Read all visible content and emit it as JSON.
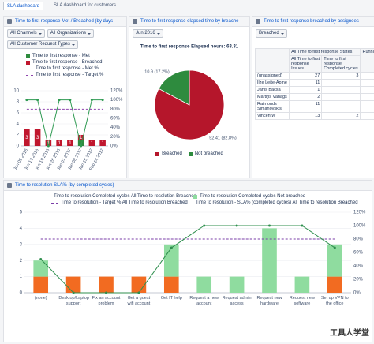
{
  "tabs": [
    "SLA dashboard",
    "SLA dashboard for customers"
  ],
  "panels": [
    {
      "title": "Time to first response Met / Breached (by days",
      "filters": [
        "All Channels",
        "All Organizations",
        "All Customer Request Types"
      ],
      "chart_data": {
        "type": "bar",
        "categories": [
          "Jun 05 2016",
          "Jun 12 2016",
          "Jun 19 2016",
          "Jun 26 2016",
          "Jan 01 2017",
          "Jan 08 2017",
          "Jan 15 2017",
          "Feb 14 2017"
        ],
        "series": [
          {
            "name": "Time to first response - Met",
            "type": "bar",
            "color": "#2e8b3e",
            "values": [
              0,
              0,
              0,
              0,
              0,
              1,
              0,
              0
            ]
          },
          {
            "name": "Time to first response - Breached",
            "type": "bar",
            "color": "#c0172e",
            "labels": true,
            "values": [
              3,
              3,
              1,
              1,
              1,
              1,
              1,
              1
            ]
          },
          {
            "name": "Time to first response - Met %",
            "type": "line",
            "axis": "y2",
            "color": "#2f9a52",
            "markers": true,
            "values": [
              100,
              100,
              0,
              100,
              100,
              0,
              100,
              100
            ]
          },
          {
            "name": "Time to first response - Target %",
            "type": "line",
            "axis": "y2",
            "color": "#8e44ad",
            "dashed": true,
            "values": [
              80,
              80,
              80,
              80,
              80,
              80,
              80,
              80
            ]
          }
        ],
        "ylim": [
          0,
          10
        ],
        "yticks": [
          0,
          2,
          4,
          6,
          8,
          10
        ],
        "y2lim": [
          0,
          120
        ],
        "y2ticks": [
          {
            "value": 0,
            "label": "0%"
          },
          {
            "value": 20,
            "label": "20%"
          },
          {
            "value": 40,
            "label": "40%"
          },
          {
            "value": 60,
            "label": "60%"
          },
          {
            "value": 80,
            "label": "80%"
          },
          {
            "value": 100,
            "label": "100%"
          },
          {
            "value": 120,
            "label": "120%"
          }
        ],
        "grid": true
      }
    },
    {
      "title": "Time to first response elapsed time by breache",
      "filters": [
        "Jun 2016"
      ],
      "chart_data": {
        "type": "pie",
        "title": "Time to first response Elapsed hours: 63.31",
        "categories": [
          "Breached",
          "Not breached"
        ],
        "values": [
          52.41,
          10.9
        ],
        "value_labels": [
          "52.41 (82.8%)",
          "10.9 (17.2%)"
        ],
        "colors": [
          "#b5162b",
          "#2e8b3e"
        ]
      }
    },
    {
      "title": "Time to first response breached by assignees",
      "filters": [
        "Breached"
      ],
      "table": {
        "header_groups": [
          "All Time to first response States",
          "Running"
        ],
        "columns": [
          "All Time to first response Issues",
          "Time to first response Completed cycles"
        ],
        "rows": [
          [
            "(unassigned)",
            27,
            3
          ],
          [
            "Ilze Leite-Apine",
            11,
            null
          ],
          [
            "Jānis Bačša",
            1,
            null
          ],
          [
            "Mārtiņš Vanags",
            2,
            null
          ],
          [
            "Raimonds Simanovskis",
            11,
            null
          ],
          [
            "VincentW",
            13,
            2
          ]
        ]
      }
    },
    {
      "title": "Time to resolution SLA% (by completed cycles)",
      "chart_data": {
        "type": "bar",
        "categories": [
          "(none)",
          "Desktop/Laptop support",
          "Fix an account problem",
          "Get a guest wifi account",
          "Get IT help",
          "Request a new account",
          "Request admin access",
          "Request new hardware",
          "Request new software",
          "Set up VPN to the office"
        ],
        "series": [
          {
            "name": "Time to resolution Completed cycles All Time to resolution Breached",
            "type": "bar",
            "color": "#f26b21",
            "values": [
              1,
              1,
              1,
              1,
              1,
              0,
              0,
              0,
              0,
              1
            ]
          },
          {
            "name": "Time to resolution Completed cycles Not breached",
            "type": "bar",
            "color": "#8fdc9f",
            "values": [
              1,
              0,
              0,
              0,
              2,
              1,
              1,
              4,
              1,
              2
            ]
          },
          {
            "name": "Time to resolution - Target % All Time to resolution Breached",
            "type": "line",
            "axis": "y2",
            "color": "#7b3fa8",
            "dashed": true,
            "values": [
              80,
              80,
              80,
              80,
              80,
              80,
              80,
              80,
              80,
              80
            ]
          },
          {
            "name": "Time to resolution - SLA% (completed cycles) All Time to resolution Breached",
            "type": "line",
            "axis": "y2",
            "color": "#2f8f4e",
            "markers": true,
            "values": [
              50,
              0,
              0,
              0,
              67,
              100,
              100,
              100,
              100,
              67
            ]
          }
        ],
        "ylim": [
          0,
          5
        ],
        "yticks": [
          0,
          1,
          2,
          3,
          4,
          5
        ],
        "y2lim": [
          0,
          120
        ],
        "y2ticks": [
          {
            "value": 0,
            "label": "0%"
          },
          {
            "value": 20,
            "label": "20%"
          },
          {
            "value": 40,
            "label": "40%"
          },
          {
            "value": 60,
            "label": "60%"
          },
          {
            "value": 80,
            "label": "80%"
          },
          {
            "value": 100,
            "label": "100%"
          },
          {
            "value": 120,
            "label": "120%"
          }
        ],
        "grid": true
      }
    }
  ],
  "watermark": "工具人学堂"
}
